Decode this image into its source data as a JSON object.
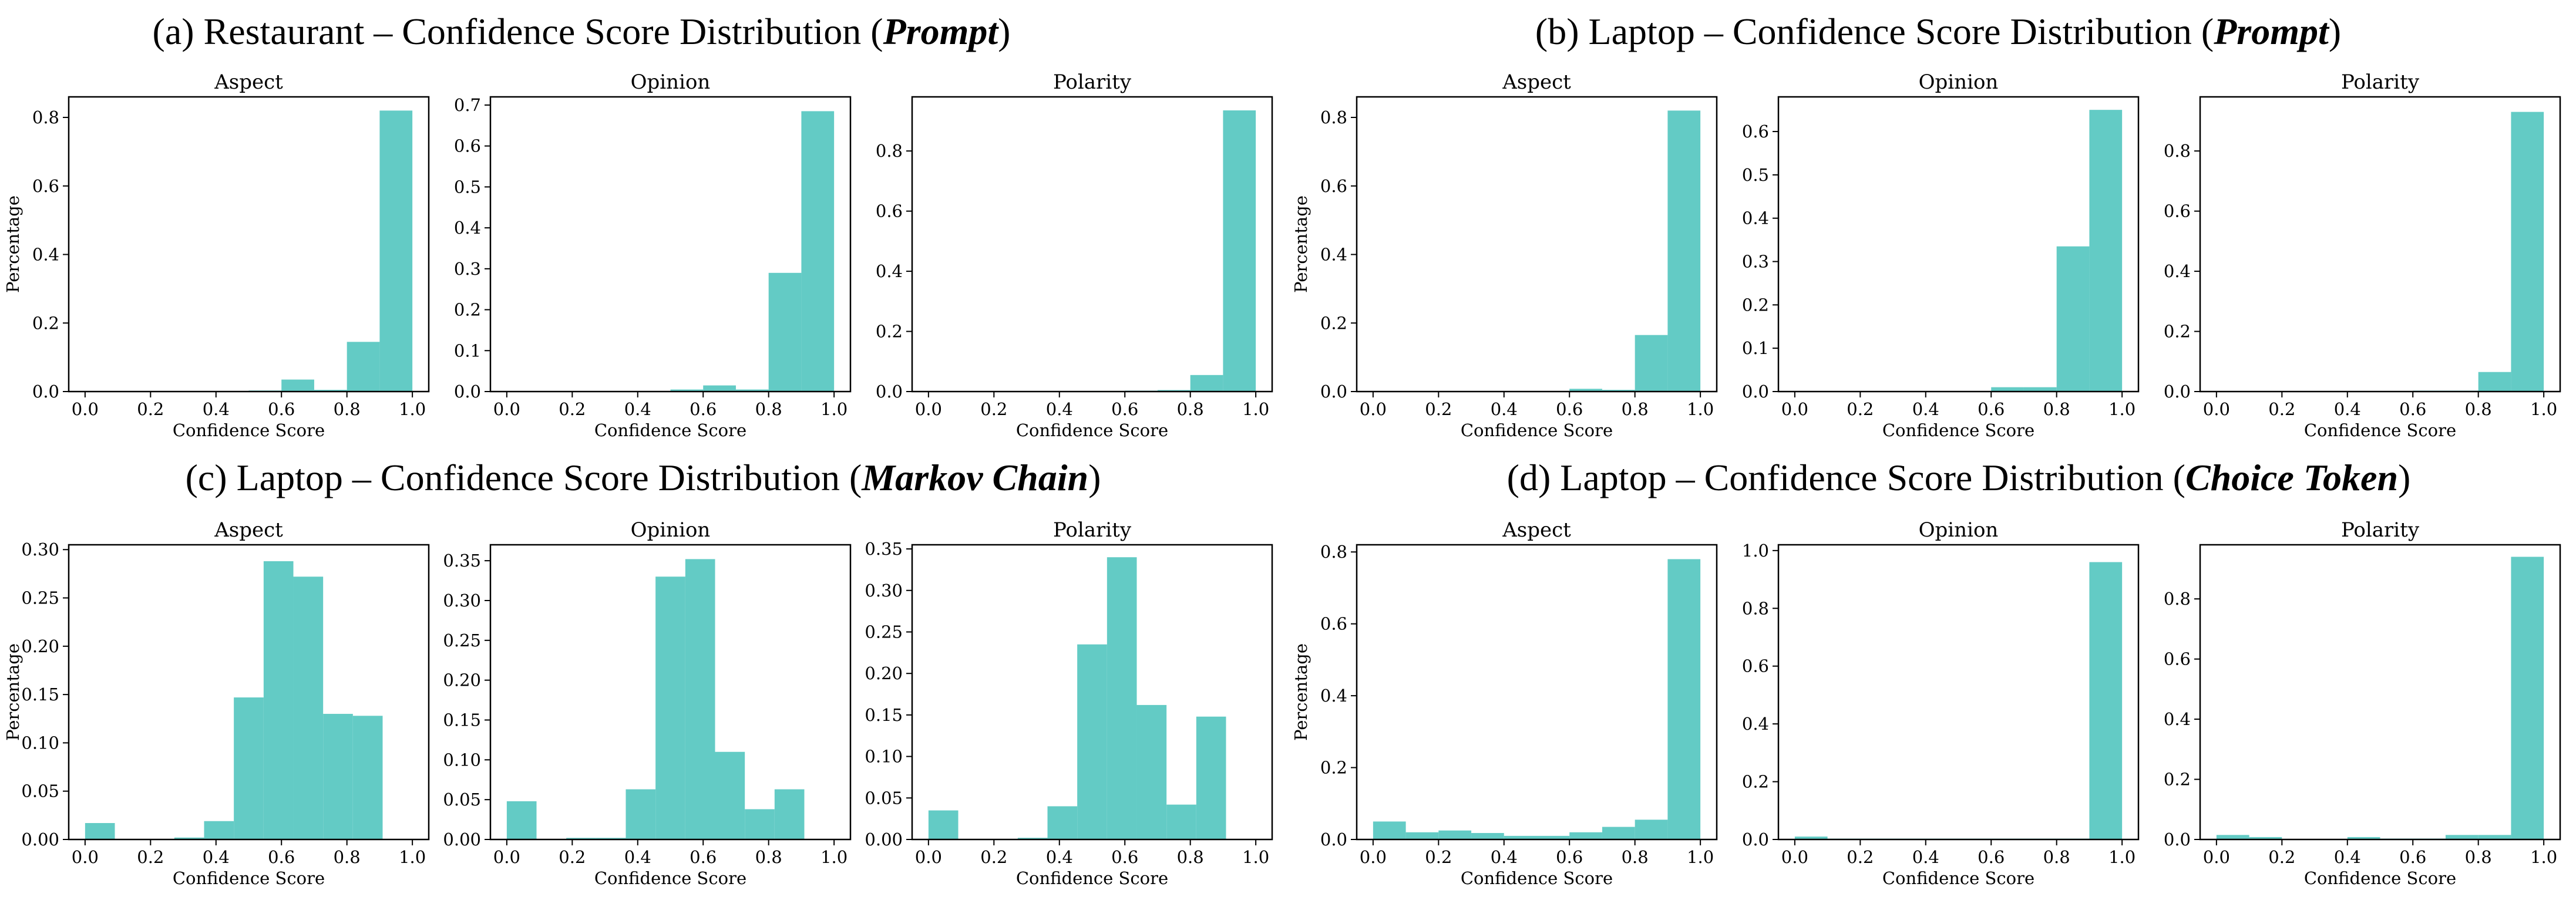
{
  "chart_data": [
    {
      "group_prefix": "(a) Restaurant – Confidence Score Distribution (",
      "group_emphasis": "Prompt",
      "group_suffix": ")",
      "ylabel": "Percentage",
      "panels": [
        {
          "title": "Aspect",
          "type": "bar",
          "xlabel": "Confidence Score",
          "xlim": [
            0,
            1
          ],
          "ylim": [
            0,
            0.86
          ],
          "xticks": [
            "0.0",
            "0.2",
            "0.4",
            "0.6",
            "0.8",
            "1.0"
          ],
          "yticks": [
            "0.0",
            "0.2",
            "0.4",
            "0.6",
            "0.8"
          ],
          "bin_edges": [
            0,
            0.1,
            0.2,
            0.3,
            0.4,
            0.5,
            0.6,
            0.7,
            0.8,
            0.9,
            1.0
          ],
          "values": [
            0,
            0,
            0,
            0,
            0,
            0.003,
            0.035,
            0.005,
            0.145,
            0.82
          ]
        },
        {
          "title": "Opinion",
          "type": "bar",
          "xlabel": "Confidence Score",
          "xlim": [
            0,
            1
          ],
          "ylim": [
            0,
            0.72
          ],
          "xticks": [
            "0.0",
            "0.2",
            "0.4",
            "0.6",
            "0.8",
            "1.0"
          ],
          "yticks": [
            "0.0",
            "0.1",
            "0.2",
            "0.3",
            "0.4",
            "0.5",
            "0.6",
            "0.7"
          ],
          "bin_edges": [
            0,
            0.1,
            0.2,
            0.3,
            0.4,
            0.5,
            0.6,
            0.7,
            0.8,
            0.9,
            1.0
          ],
          "values": [
            0,
            0,
            0,
            0,
            0,
            0.005,
            0.015,
            0.005,
            0.29,
            0.685
          ]
        },
        {
          "title": "Polarity",
          "type": "bar",
          "xlabel": "Confidence Score",
          "xlim": [
            0,
            1
          ],
          "ylim": [
            0,
            0.98
          ],
          "xticks": [
            "0.0",
            "0.2",
            "0.4",
            "0.6",
            "0.8",
            "1.0"
          ],
          "yticks": [
            "0.0",
            "0.2",
            "0.4",
            "0.6",
            "0.8"
          ],
          "bin_edges": [
            0,
            0.1,
            0.2,
            0.3,
            0.4,
            0.5,
            0.6,
            0.7,
            0.8,
            0.9,
            1.0
          ],
          "values": [
            0,
            0,
            0,
            0,
            0,
            0.002,
            0.003,
            0.005,
            0.055,
            0.935
          ]
        }
      ]
    },
    {
      "group_prefix": "(b) Laptop – Confidence Score Distribution (",
      "group_emphasis": "Prompt",
      "group_suffix": ")",
      "ylabel": "Percentage",
      "panels": [
        {
          "title": "Aspect",
          "type": "bar",
          "xlabel": "Confidence Score",
          "xlim": [
            0,
            1
          ],
          "ylim": [
            0,
            0.86
          ],
          "xticks": [
            "0.0",
            "0.2",
            "0.4",
            "0.6",
            "0.8",
            "1.0"
          ],
          "yticks": [
            "0.0",
            "0.2",
            "0.4",
            "0.6",
            "0.8"
          ],
          "bin_edges": [
            0,
            0.1,
            0.2,
            0.3,
            0.4,
            0.5,
            0.6,
            0.7,
            0.8,
            0.9,
            1.0
          ],
          "values": [
            0,
            0,
            0,
            0,
            0,
            0,
            0.008,
            0.005,
            0.165,
            0.82
          ]
        },
        {
          "title": "Opinion",
          "type": "bar",
          "xlabel": "Confidence Score",
          "xlim": [
            0,
            1
          ],
          "ylim": [
            0,
            0.68
          ],
          "xticks": [
            "0.0",
            "0.2",
            "0.4",
            "0.6",
            "0.8",
            "1.0"
          ],
          "yticks": [
            "0.0",
            "0.1",
            "0.2",
            "0.3",
            "0.4",
            "0.5",
            "0.6"
          ],
          "bin_edges": [
            0,
            0.1,
            0.2,
            0.3,
            0.4,
            0.5,
            0.6,
            0.7,
            0.8,
            0.9,
            1.0
          ],
          "values": [
            0,
            0,
            0,
            0,
            0,
            0,
            0.01,
            0.01,
            0.335,
            0.65
          ]
        },
        {
          "title": "Polarity",
          "type": "bar",
          "xlabel": "Confidence Score",
          "xlim": [
            0,
            1
          ],
          "ylim": [
            0,
            0.98
          ],
          "xticks": [
            "0.0",
            "0.2",
            "0.4",
            "0.6",
            "0.8",
            "1.0"
          ],
          "yticks": [
            "0.0",
            "0.2",
            "0.4",
            "0.6",
            "0.8"
          ],
          "bin_edges": [
            0,
            0.1,
            0.2,
            0.3,
            0.4,
            0.5,
            0.6,
            0.7,
            0.8,
            0.9,
            1.0
          ],
          "values": [
            0,
            0,
            0,
            0,
            0,
            0,
            0.003,
            0.003,
            0.065,
            0.93
          ]
        }
      ]
    },
    {
      "group_prefix": "(c) Laptop – Confidence Score Distribution (",
      "group_emphasis": "Markov Chain",
      "group_suffix": ")",
      "ylabel": "Percentage",
      "panels": [
        {
          "title": "Aspect",
          "type": "bar",
          "xlabel": "Confidence Score",
          "xlim": [
            0,
            1
          ],
          "ylim": [
            0,
            0.305
          ],
          "xticks": [
            "0.0",
            "0.2",
            "0.4",
            "0.6",
            "0.8",
            "1.0"
          ],
          "yticks": [
            "0.00",
            "0.05",
            "0.10",
            "0.15",
            "0.20",
            "0.25",
            "0.30"
          ],
          "bin_edges": [
            0,
            0.0909,
            0.1818,
            0.2727,
            0.3636,
            0.4545,
            0.5455,
            0.6364,
            0.7273,
            0.8182,
            0.9091,
            1.0
          ],
          "values": [
            0.017,
            0,
            0,
            0.002,
            0.019,
            0.147,
            0.288,
            0.272,
            0.13,
            0.128,
            0
          ]
        },
        {
          "title": "Opinion",
          "type": "bar",
          "xlabel": "Confidence Score",
          "xlim": [
            0,
            1
          ],
          "ylim": [
            0,
            0.37
          ],
          "xticks": [
            "0.0",
            "0.2",
            "0.4",
            "0.6",
            "0.8",
            "1.0"
          ],
          "yticks": [
            "0.00",
            "0.05",
            "0.10",
            "0.15",
            "0.20",
            "0.25",
            "0.30",
            "0.35"
          ],
          "bin_edges": [
            0,
            0.0909,
            0.1818,
            0.2727,
            0.3636,
            0.4545,
            0.5455,
            0.6364,
            0.7273,
            0.8182,
            0.9091,
            1.0
          ],
          "values": [
            0.048,
            0,
            0.002,
            0.002,
            0.063,
            0.33,
            0.352,
            0.11,
            0.038,
            0.063,
            0
          ]
        },
        {
          "title": "Polarity",
          "type": "bar",
          "xlabel": "Confidence Score",
          "xlim": [
            0,
            1
          ],
          "ylim": [
            0,
            0.355
          ],
          "xticks": [
            "0.0",
            "0.2",
            "0.4",
            "0.6",
            "0.8",
            "1.0"
          ],
          "yticks": [
            "0.00",
            "0.05",
            "0.10",
            "0.15",
            "0.20",
            "0.25",
            "0.30",
            "0.35"
          ],
          "bin_edges": [
            0,
            0.0909,
            0.1818,
            0.2727,
            0.3636,
            0.4545,
            0.5455,
            0.6364,
            0.7273,
            0.8182,
            0.9091,
            1.0
          ],
          "values": [
            0.035,
            0,
            0,
            0.002,
            0.04,
            0.235,
            0.34,
            0.162,
            0.042,
            0.148,
            0
          ]
        }
      ]
    },
    {
      "group_prefix": "(d) Laptop – Confidence Score Distribution (",
      "group_emphasis": "Choice Token",
      "group_suffix": ")",
      "ylabel": "Percentage",
      "panels": [
        {
          "title": "Aspect",
          "type": "bar",
          "xlabel": "Confidence Score",
          "xlim": [
            0,
            1
          ],
          "ylim": [
            0,
            0.82
          ],
          "xticks": [
            "0.0",
            "0.2",
            "0.4",
            "0.6",
            "0.8",
            "1.0"
          ],
          "yticks": [
            "0.0",
            "0.2",
            "0.4",
            "0.6",
            "0.8"
          ],
          "bin_edges": [
            0,
            0.1,
            0.2,
            0.3,
            0.4,
            0.5,
            0.6,
            0.7,
            0.8,
            0.9,
            1.0
          ],
          "values": [
            0.05,
            0.02,
            0.025,
            0.018,
            0.01,
            0.01,
            0.02,
            0.035,
            0.055,
            0.78
          ]
        },
        {
          "title": "Opinion",
          "type": "bar",
          "xlabel": "Confidence Score",
          "xlim": [
            0,
            1
          ],
          "ylim": [
            0,
            1.02
          ],
          "xticks": [
            "0.0",
            "0.2",
            "0.4",
            "0.6",
            "0.8",
            "1.0"
          ],
          "yticks": [
            "0.0",
            "0.2",
            "0.4",
            "0.6",
            "0.8",
            "1.0"
          ],
          "bin_edges": [
            0,
            0.1,
            0.2,
            0.3,
            0.4,
            0.5,
            0.6,
            0.7,
            0.8,
            0.9,
            1.0
          ],
          "values": [
            0.01,
            0.003,
            0.003,
            0.003,
            0.003,
            0.003,
            0.003,
            0.003,
            0.003,
            0.96
          ]
        },
        {
          "title": "Polarity",
          "type": "bar",
          "xlabel": "Confidence Score",
          "xlim": [
            0,
            1
          ],
          "ylim": [
            0,
            0.98
          ],
          "xticks": [
            "0.0",
            "0.2",
            "0.4",
            "0.6",
            "0.8",
            "1.0"
          ],
          "yticks": [
            "0.0",
            "0.2",
            "0.4",
            "0.6",
            "0.8"
          ],
          "bin_edges": [
            0,
            0.1,
            0.2,
            0.3,
            0.4,
            0.5,
            0.6,
            0.7,
            0.8,
            0.9,
            1.0
          ],
          "values": [
            0.015,
            0.008,
            0,
            0,
            0.008,
            0.003,
            0.003,
            0.015,
            0.015,
            0.94
          ]
        }
      ]
    }
  ]
}
